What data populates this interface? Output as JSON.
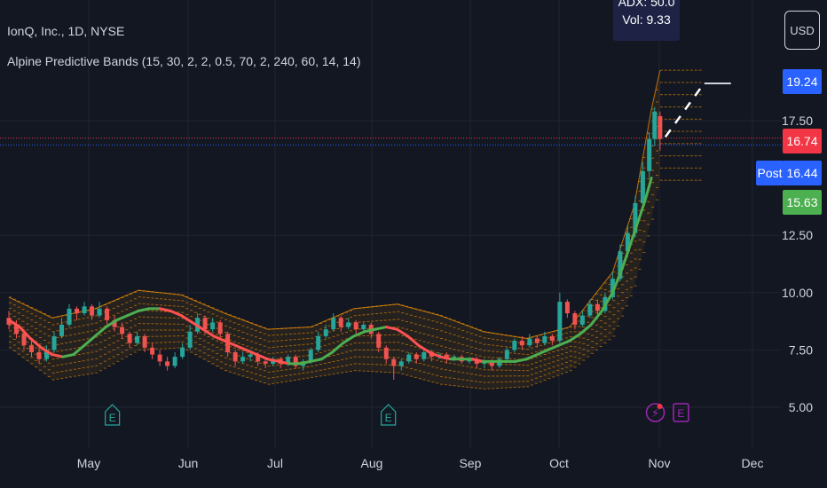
{
  "header": {
    "symbol_title": "IonQ, Inc., 1D, NYSE",
    "indicator_title": "Alpine Predictive Bands (15, 30, 2, 2, 0.5, 70, 2, 240, 60, 14, 14)",
    "currency_button": "USD"
  },
  "tooltip": {
    "line1": "ADX: 50.0",
    "line2": "Vol: 9.33"
  },
  "price_tags": {
    "upper_band": {
      "label": "19.24",
      "color": "#2962ff"
    },
    "last_price": {
      "label": "16.74",
      "color": "#f23645"
    },
    "post_market": {
      "label": "16.44",
      "color": "#2962ff",
      "tag": "Post"
    },
    "lower_band": {
      "label": "15.63",
      "color": "#4caf50"
    }
  },
  "colors": {
    "background": "#131722",
    "up_candle": "#26a69a",
    "down_candle": "#ef5350",
    "band": "#ff9800",
    "ma_up": "#4caf50",
    "ma_down": "#ff5252",
    "grid": "#1f2433",
    "earnings": "#26a69a",
    "dividend": "#9c27b0"
  },
  "chart_data": {
    "type": "candlestick",
    "y_ticks": [
      5.0,
      7.5,
      10.0,
      12.5,
      17.5
    ],
    "y_tick_labels": [
      "5.00",
      "7.50",
      "10.00",
      "12.50",
      "17.50"
    ],
    "ylim": [
      3.9,
      21.0
    ],
    "x_labels": [
      "May",
      "Jun",
      "Jul",
      "Aug",
      "Sep",
      "Oct",
      "Nov",
      "Dec"
    ],
    "grid": true,
    "ma_line": [
      [
        0,
        8.8
      ],
      [
        10,
        8.5
      ],
      [
        20,
        8.0
      ],
      [
        30,
        7.6
      ],
      [
        40,
        7.3
      ],
      [
        50,
        7.2
      ],
      [
        60,
        7.3
      ],
      [
        70,
        7.7
      ],
      [
        80,
        8.1
      ],
      [
        90,
        8.5
      ],
      [
        100,
        8.8
      ],
      [
        110,
        9.0
      ],
      [
        120,
        9.2
      ],
      [
        130,
        9.3
      ],
      [
        140,
        9.3
      ],
      [
        150,
        9.2
      ],
      [
        160,
        9.0
      ],
      [
        170,
        8.7
      ],
      [
        180,
        8.4
      ],
      [
        190,
        8.1
      ],
      [
        200,
        7.9
      ],
      [
        210,
        7.7
      ],
      [
        220,
        7.5
      ],
      [
        230,
        7.3
      ],
      [
        240,
        7.1
      ],
      [
        250,
        7.0
      ],
      [
        260,
        6.9
      ],
      [
        270,
        6.9
      ],
      [
        280,
        7.0
      ],
      [
        290,
        7.1
      ],
      [
        300,
        7.4
      ],
      [
        310,
        7.8
      ],
      [
        320,
        8.1
      ],
      [
        330,
        8.3
      ],
      [
        340,
        8.4
      ],
      [
        350,
        8.5
      ],
      [
        360,
        8.4
      ],
      [
        370,
        8.1
      ],
      [
        380,
        7.7
      ],
      [
        390,
        7.4
      ],
      [
        400,
        7.2
      ],
      [
        410,
        7.1
      ],
      [
        420,
        7.1
      ],
      [
        430,
        7.1
      ],
      [
        440,
        7.0
      ],
      [
        450,
        7.0
      ],
      [
        460,
        7.0
      ],
      [
        470,
        7.0
      ],
      [
        480,
        7.1
      ],
      [
        490,
        7.3
      ],
      [
        500,
        7.5
      ],
      [
        510,
        7.7
      ],
      [
        520,
        7.9
      ],
      [
        530,
        8.2
      ],
      [
        540,
        8.6
      ],
      [
        550,
        9.2
      ],
      [
        560,
        10.0
      ],
      [
        570,
        11.2
      ],
      [
        580,
        12.6
      ],
      [
        590,
        14.0
      ],
      [
        596,
        15.0
      ]
    ],
    "candles": [
      [
        0,
        8.9,
        8.6,
        9.2,
        8.4
      ],
      [
        7,
        8.6,
        8.2,
        8.8,
        8.0
      ],
      [
        14,
        8.2,
        7.7,
        8.4,
        7.5
      ],
      [
        21,
        7.7,
        7.4,
        7.9,
        7.2
      ],
      [
        28,
        7.4,
        7.1,
        7.6,
        6.9
      ],
      [
        35,
        7.1,
        7.5,
        7.7,
        7.0
      ],
      [
        42,
        7.5,
        8.1,
        8.3,
        7.4
      ],
      [
        49,
        8.1,
        8.6,
        8.9,
        8.0
      ],
      [
        56,
        8.6,
        9.3,
        9.5,
        8.5
      ],
      [
        63,
        9.3,
        9.1,
        9.4,
        8.8
      ],
      [
        70,
        9.1,
        9.4,
        9.6,
        9.0
      ],
      [
        77,
        9.4,
        9.0,
        9.5,
        8.8
      ],
      [
        84,
        9.0,
        9.3,
        9.6,
        8.9
      ],
      [
        91,
        9.3,
        8.8,
        9.4,
        8.6
      ],
      [
        98,
        8.8,
        8.5,
        9.0,
        8.3
      ],
      [
        105,
        8.5,
        8.2,
        8.7,
        8.0
      ],
      [
        112,
        8.2,
        7.8,
        8.3,
        7.6
      ],
      [
        119,
        7.8,
        8.1,
        8.3,
        7.7
      ],
      [
        126,
        8.1,
        7.6,
        8.2,
        7.4
      ],
      [
        133,
        7.6,
        7.3,
        7.8,
        7.1
      ],
      [
        140,
        7.3,
        7.0,
        7.5,
        6.8
      ],
      [
        147,
        7.0,
        6.8,
        7.2,
        6.6
      ],
      [
        154,
        6.8,
        7.2,
        7.4,
        6.7
      ],
      [
        161,
        7.2,
        7.6,
        7.8,
        7.1
      ],
      [
        168,
        7.6,
        8.3,
        8.6,
        7.5
      ],
      [
        175,
        8.3,
        8.9,
        9.1,
        8.2
      ],
      [
        182,
        8.9,
        8.4,
        9.0,
        8.2
      ],
      [
        189,
        8.4,
        8.7,
        8.9,
        8.3
      ],
      [
        196,
        8.7,
        8.2,
        8.8,
        8.0
      ],
      [
        203,
        8.2,
        7.4,
        8.3,
        7.2
      ],
      [
        210,
        7.4,
        7.0,
        7.5,
        6.8
      ],
      [
        217,
        7.0,
        7.2,
        7.4,
        6.9
      ],
      [
        224,
        7.2,
        7.3,
        7.5,
        7.0
      ],
      [
        231,
        7.3,
        7.0,
        7.4,
        6.8
      ],
      [
        238,
        7.0,
        6.9,
        7.1,
        6.7
      ],
      [
        245,
        6.9,
        7.1,
        7.2,
        6.8
      ],
      [
        252,
        7.1,
        6.9,
        7.2,
        6.7
      ],
      [
        259,
        6.9,
        7.2,
        7.3,
        6.8
      ],
      [
        266,
        7.2,
        6.8,
        7.3,
        6.7
      ],
      [
        273,
        6.8,
        7.0,
        7.1,
        6.6
      ],
      [
        280,
        7.0,
        7.5,
        7.6,
        6.9
      ],
      [
        287,
        7.5,
        8.1,
        8.3,
        7.4
      ],
      [
        294,
        8.1,
        8.4,
        8.6,
        8.0
      ],
      [
        301,
        8.4,
        8.9,
        9.1,
        8.3
      ],
      [
        308,
        8.9,
        8.5,
        9.0,
        8.3
      ],
      [
        315,
        8.5,
        8.7,
        8.9,
        8.4
      ],
      [
        322,
        8.7,
        8.4,
        8.8,
        8.2
      ],
      [
        329,
        8.4,
        8.6,
        8.7,
        8.3
      ],
      [
        336,
        8.6,
        8.2,
        8.7,
        8.0
      ],
      [
        343,
        8.2,
        7.6,
        8.3,
        7.4
      ],
      [
        350,
        7.6,
        7.1,
        7.7,
        6.9
      ],
      [
        357,
        7.1,
        6.8,
        7.2,
        6.2
      ],
      [
        364,
        6.8,
        7.0,
        7.1,
        6.6
      ],
      [
        371,
        7.0,
        7.3,
        7.4,
        6.9
      ],
      [
        378,
        7.3,
        7.1,
        7.4,
        6.9
      ],
      [
        385,
        7.1,
        7.4,
        7.5,
        7.0
      ],
      [
        392,
        7.4,
        7.2,
        7.5,
        7.0
      ],
      [
        399,
        7.2,
        7.3,
        7.4,
        7.1
      ],
      [
        406,
        7.3,
        7.1,
        7.4,
        6.9
      ],
      [
        413,
        7.1,
        7.2,
        7.3,
        7.0
      ],
      [
        420,
        7.2,
        7.0,
        7.3,
        6.9
      ],
      [
        427,
        7.0,
        7.1,
        7.2,
        6.9
      ],
      [
        434,
        7.1,
        6.9,
        7.2,
        6.7
      ],
      [
        441,
        6.9,
        7.0,
        7.1,
        6.7
      ],
      [
        448,
        7.0,
        6.8,
        7.1,
        6.6
      ],
      [
        455,
        6.8,
        7.1,
        7.2,
        6.7
      ],
      [
        462,
        7.1,
        7.5,
        7.6,
        7.0
      ],
      [
        469,
        7.5,
        7.9,
        8.0,
        7.4
      ],
      [
        476,
        7.9,
        7.7,
        8.1,
        7.5
      ],
      [
        483,
        7.7,
        8.0,
        8.2,
        7.6
      ],
      [
        490,
        8.0,
        7.8,
        8.1,
        7.6
      ],
      [
        497,
        7.8,
        8.1,
        8.3,
        7.7
      ],
      [
        504,
        8.1,
        7.9,
        8.2,
        7.7
      ],
      [
        511,
        7.9,
        9.6,
        10.0,
        7.8
      ],
      [
        518,
        9.6,
        9.1,
        9.7,
        8.9
      ],
      [
        525,
        9.1,
        8.6,
        9.2,
        8.4
      ],
      [
        532,
        8.6,
        9.0,
        9.2,
        8.5
      ],
      [
        539,
        9.0,
        9.5,
        9.7,
        8.9
      ],
      [
        546,
        9.5,
        9.2,
        9.7,
        9.0
      ],
      [
        553,
        9.2,
        9.8,
        10.0,
        9.1
      ],
      [
        560,
        9.8,
        10.6,
        10.9,
        9.7
      ],
      [
        567,
        10.6,
        11.8,
        12.1,
        10.5
      ],
      [
        574,
        11.8,
        12.6,
        12.9,
        11.6
      ],
      [
        581,
        12.6,
        13.9,
        14.2,
        12.4
      ],
      [
        588,
        13.9,
        15.3,
        15.7,
        13.7
      ],
      [
        594,
        15.3,
        16.7,
        17.0,
        15.0
      ],
      [
        599,
        16.7,
        17.9,
        18.1,
        16.4
      ],
      [
        604,
        17.7,
        16.7,
        17.9,
        16.2
      ]
    ],
    "band_upper": [
      [
        0,
        9.8
      ],
      [
        40,
        8.9
      ],
      [
        80,
        9.3
      ],
      [
        120,
        10.1
      ],
      [
        160,
        9.9
      ],
      [
        200,
        9.1
      ],
      [
        240,
        8.4
      ],
      [
        280,
        8.5
      ],
      [
        320,
        9.3
      ],
      [
        360,
        9.5
      ],
      [
        400,
        9.0
      ],
      [
        440,
        8.3
      ],
      [
        480,
        8.0
      ],
      [
        520,
        8.5
      ],
      [
        560,
        10.9
      ],
      [
        580,
        13.8
      ],
      [
        596,
        18.0
      ],
      [
        604,
        19.7
      ]
    ],
    "band_lower": [
      [
        0,
        7.6
      ],
      [
        40,
        6.2
      ],
      [
        80,
        6.5
      ],
      [
        120,
        7.5
      ],
      [
        160,
        7.6
      ],
      [
        200,
        6.6
      ],
      [
        240,
        6.0
      ],
      [
        280,
        6.3
      ],
      [
        320,
        6.6
      ],
      [
        360,
        6.5
      ],
      [
        400,
        6.0
      ],
      [
        440,
        5.8
      ],
      [
        480,
        5.9
      ],
      [
        520,
        6.6
      ],
      [
        560,
        8.1
      ],
      [
        580,
        10.3
      ],
      [
        596,
        13.2
      ],
      [
        604,
        14.9
      ]
    ],
    "projection": [
      [
        604,
        15.63
      ],
      [
        650,
        19.24
      ]
    ],
    "horizontal_lines": [
      {
        "value": 16.74,
        "color": "#f23645",
        "style": "dotted"
      },
      {
        "value": 16.44,
        "color": "#2962ff",
        "style": "dotted"
      }
    ],
    "events": [
      {
        "type": "earnings",
        "label": "E",
        "x": 96
      },
      {
        "type": "earnings",
        "label": "E",
        "x": 352
      },
      {
        "type": "split",
        "label": "⚡",
        "x": 598
      },
      {
        "type": "earnings",
        "label": "E",
        "x": 623
      }
    ]
  }
}
